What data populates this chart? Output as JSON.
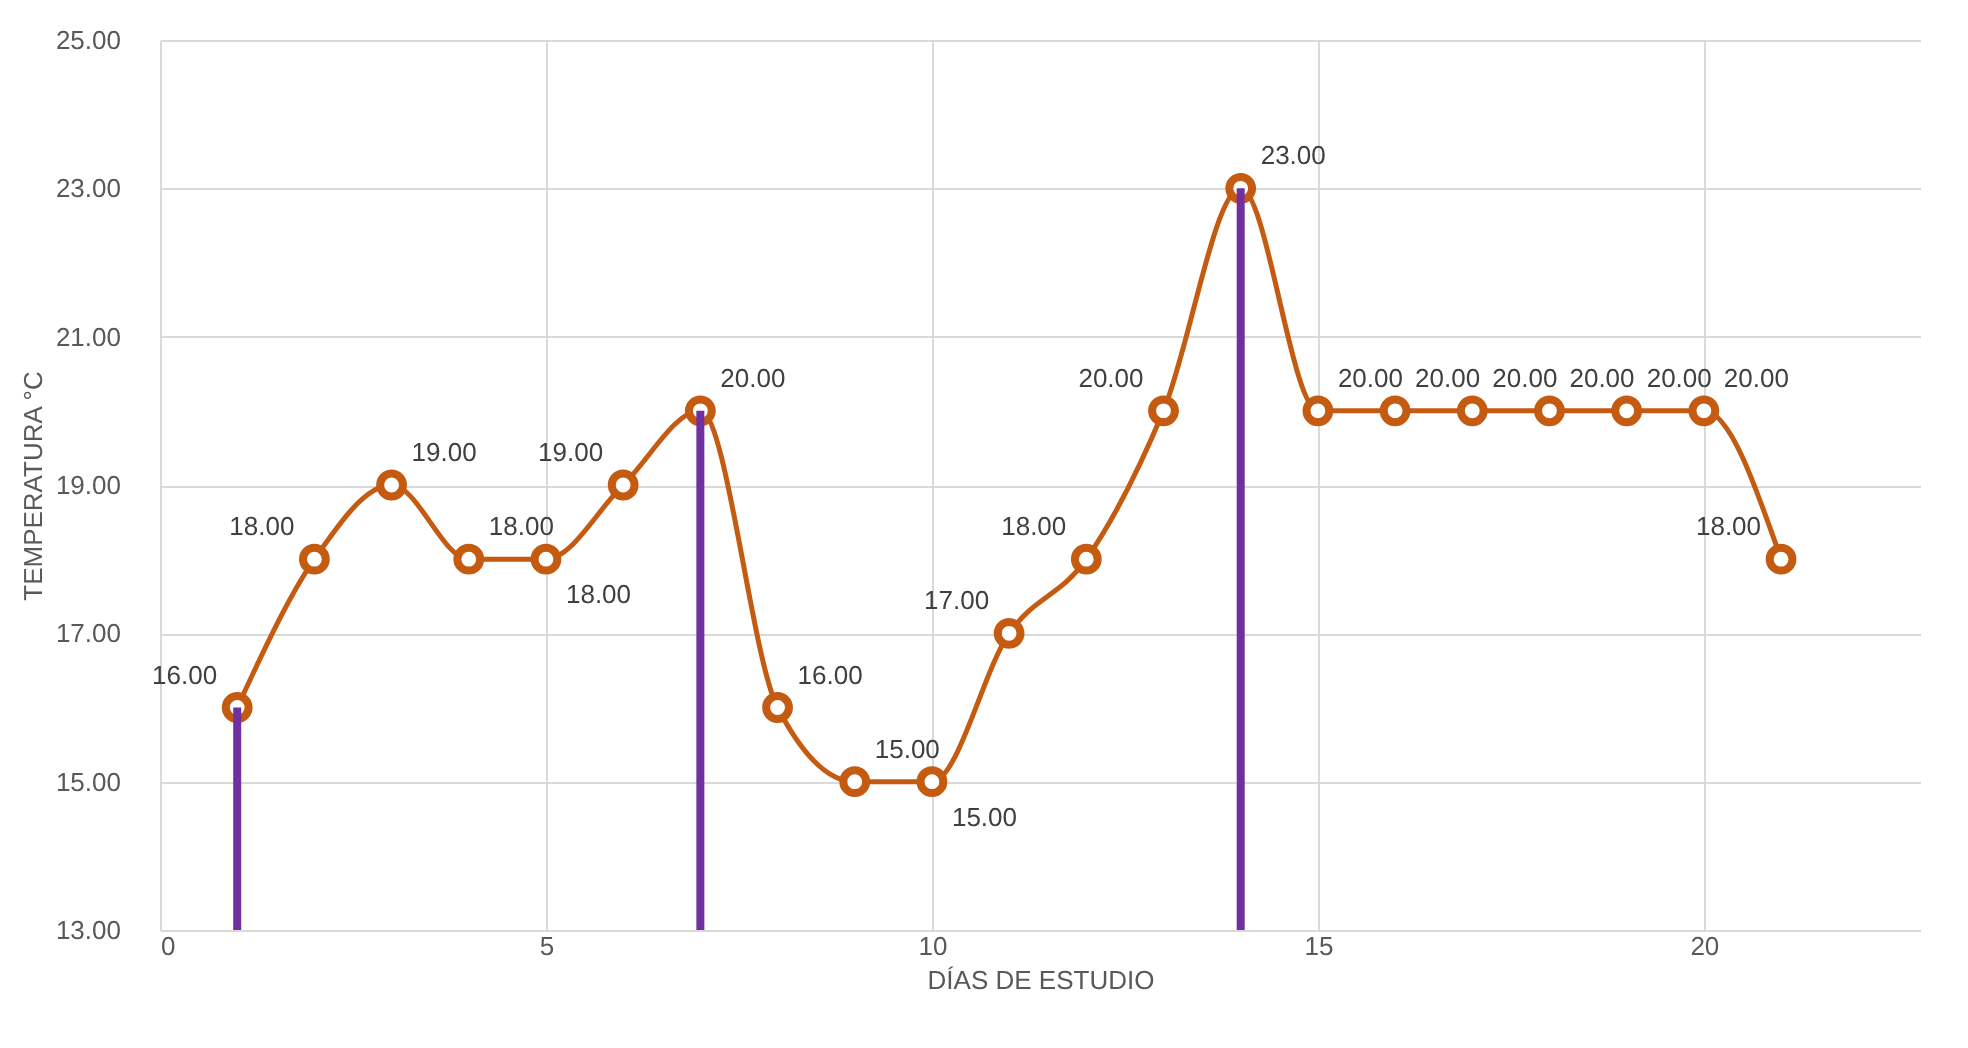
{
  "chart_data": {
    "type": "line",
    "xlabel": "DÍAS DE ESTUDIO",
    "ylabel": "TEMPERATURA °C",
    "x": [
      1,
      2,
      3,
      4,
      5,
      6,
      7,
      8,
      9,
      10,
      11,
      12,
      13,
      14,
      15,
      16,
      17,
      18,
      19,
      20,
      21
    ],
    "series": [
      {
        "color": "#c55a11",
        "values": [
          16,
          18,
          19,
          18,
          18,
          19,
          20,
          16,
          15,
          15,
          17,
          18,
          20,
          23,
          20,
          20,
          20,
          20,
          20,
          20,
          18
        ],
        "value_labels": [
          "16.00",
          "18.00",
          "19.00",
          "18.00",
          "18.00",
          "19.00",
          "20.00",
          "16.00",
          "15.00",
          "15.00",
          "17.00",
          "18.00",
          "20.00",
          "23.00",
          "20.00",
          "20.00",
          "20.00",
          "20.00",
          "20.00",
          "20.00",
          "18.00"
        ]
      },
      {
        "type": "bar",
        "color": "#7030a0",
        "x": [
          1,
          7,
          14
        ],
        "values": [
          16,
          20,
          23
        ]
      }
    ],
    "xlim": [
      0,
      22.8
    ],
    "xticks": [
      0,
      5,
      10,
      15,
      20
    ],
    "ylim": [
      13,
      25
    ],
    "yticks": [
      {
        "value": 13,
        "label": "13.00"
      },
      {
        "value": 15,
        "label": "15.00"
      },
      {
        "value": 17,
        "label": "17.00"
      },
      {
        "value": 19,
        "label": "19.00"
      },
      {
        "value": 21,
        "label": "21.00"
      },
      {
        "value": 23,
        "label": "23.00"
      },
      {
        "value": 25,
        "label": "25.00"
      }
    ],
    "grid": true,
    "marker": "circle",
    "line_style": "solid"
  }
}
